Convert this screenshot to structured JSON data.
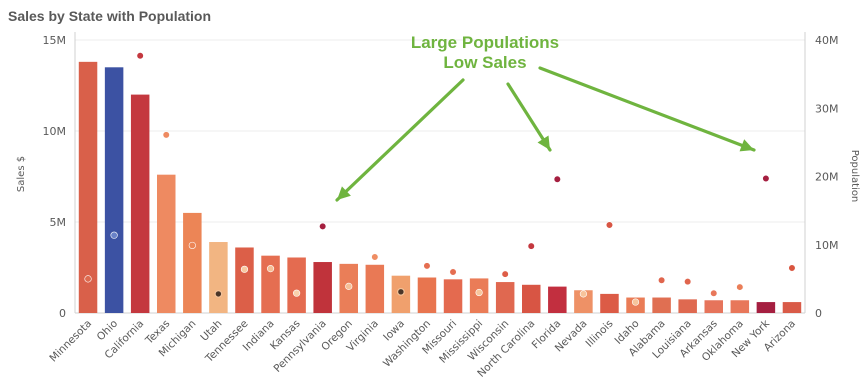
{
  "chart_data": {
    "type": "bar",
    "title": "Sales by State with Population",
    "ylabel": "Sales $",
    "y2label": "Population",
    "ylim": [
      0,
      15000000
    ],
    "y2lim": [
      0,
      40000000
    ],
    "yticks": [
      "0",
      "5M",
      "10M",
      "15M"
    ],
    "y2ticks": [
      "0",
      "10M",
      "20M",
      "30M",
      "40M"
    ],
    "grid": true,
    "categories": [
      "Minnesota",
      "Ohio",
      "California",
      "Texas",
      "Michigan",
      "Utah",
      "Tennessee",
      "Indiana",
      "Kansas",
      "Pennsylvania",
      "Oregon",
      "Virginia",
      "Iowa",
      "Washington",
      "Missouri",
      "Mississippi",
      "Wisconsin",
      "North Carolina",
      "Florida",
      "Nevada",
      "Illinois",
      "Idaho",
      "Alabama",
      "Louisiana",
      "Arkansas",
      "Oklahoma",
      "New York",
      "Arizona"
    ],
    "series": [
      {
        "type": "bar",
        "axis": "left",
        "values": [
          13800000,
          13500000,
          12000000,
          7600000,
          5500000,
          3900000,
          3600000,
          3150000,
          3050000,
          2800000,
          2700000,
          2650000,
          2050000,
          1950000,
          1850000,
          1900000,
          1700000,
          1550000,
          1450000,
          1250000,
          1050000,
          850000,
          850000,
          750000,
          700000,
          700000,
          600000,
          600000
        ]
      },
      {
        "type": "scatter",
        "axis": "right",
        "values": [
          5000000,
          11400000,
          37700000,
          26100000,
          9900000,
          2800000,
          6400000,
          6500000,
          2900000,
          12700000,
          3900000,
          8200000,
          3100000,
          6900000,
          6000000,
          3000000,
          5700000,
          9800000,
          19600000,
          2800000,
          12900000,
          1600000,
          4800000,
          4600000,
          2900000,
          3800000,
          19700000,
          6600000
        ]
      }
    ],
    "colors": {
      "bar_colors": [
        "#d9604a",
        "#3c52a3",
        "#c4383f",
        "#ee8a61",
        "#ec8556",
        "#f2b582",
        "#dc5f48",
        "#e56e51",
        "#e46b50",
        "#c0333b",
        "#ea7e58",
        "#e97955",
        "#f0a06d",
        "#e8754f",
        "#e46a4f",
        "#ea7c57",
        "#e06850",
        "#d85544",
        "#c22f3f",
        "#ee9166",
        "#dc5b46",
        "#ea7c56",
        "#e06f52",
        "#df6950",
        "#e6745b",
        "#e8775a",
        "#a51f40",
        "#d95b48"
      ],
      "dot_colors": [
        "#dd6a4f",
        "#6a82c8",
        "#c4383f",
        "#ee8a61",
        "#ec8556",
        "#4a3528",
        "#f7c9a2",
        "#f6bf96",
        "#f9d1ac",
        "#a51f3f",
        "#f6c097",
        "#ef8d63",
        "#4a3528",
        "#e56e51",
        "#e56e51",
        "#f8c69c",
        "#de5d47",
        "#c4383f",
        "#a51f40",
        "#f7c39a",
        "#d85544",
        "#f6c49b",
        "#e0654d",
        "#e0654d",
        "#e8775a",
        "#ea7e58",
        "#a51f40",
        "#d9553f"
      ],
      "dot_hollow": [
        false,
        false,
        false,
        false,
        false,
        true,
        false,
        false,
        false,
        false,
        false,
        false,
        true,
        false,
        false,
        false,
        false,
        false,
        false,
        false,
        false,
        false,
        false,
        false,
        false,
        false,
        false,
        false
      ],
      "annotation": "#6fb43f"
    },
    "annotation": {
      "line1": "Large Populations",
      "line2": "Low Sales",
      "arrow_targets": [
        "Pennsylvania",
        "Florida",
        "New York"
      ]
    }
  }
}
